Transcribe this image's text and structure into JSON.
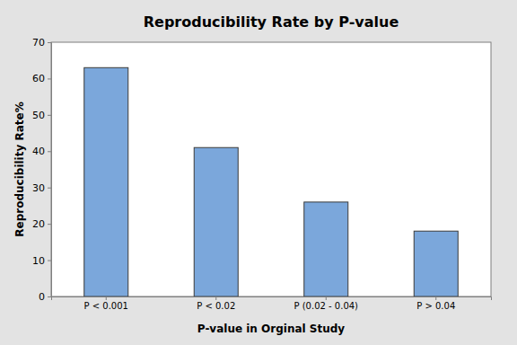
{
  "chart_data": {
    "type": "bar",
    "title": "Reproducibility Rate by P-value",
    "xlabel": "P-value in Orginal Study",
    "ylabel": "Reproducibility Rate%",
    "categories": [
      "P < 0.001",
      "P < 0.02",
      "P (0.02 - 0.04)",
      "P > 0.04"
    ],
    "values": [
      63,
      41,
      26,
      18
    ],
    "color": "#7ba7db",
    "ylim": [
      0,
      70
    ],
    "yticks": [
      0,
      10,
      20,
      30,
      40,
      50,
      60,
      70
    ],
    "grid": false
  }
}
